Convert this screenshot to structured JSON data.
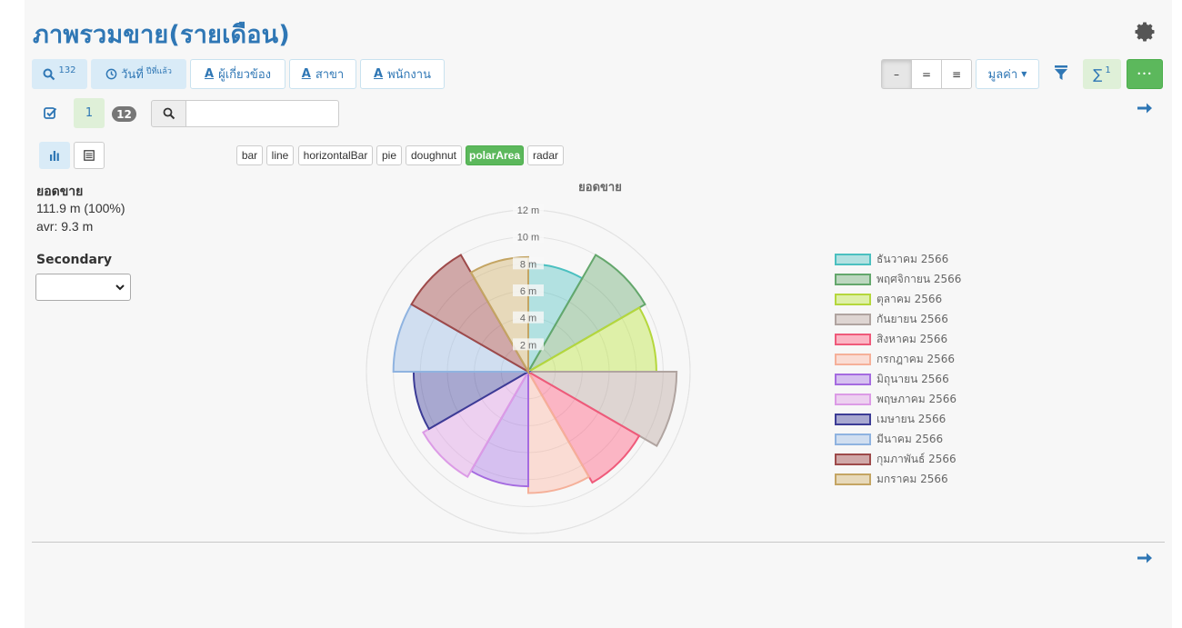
{
  "header": {
    "title": "ภาพรวมขาย(รายเดือน)"
  },
  "toolbar": {
    "search_count": "132",
    "date_label": "วันที่",
    "date_sup": "ปีที่แล้ว",
    "related_label": "ผู้เกี่ยวข้อง",
    "branch_label": "สาขา",
    "employee_label": "พนักงาน",
    "letter_icon": "A",
    "seg_labels": [
      "–",
      "=",
      "≡"
    ],
    "value_dropdown": "มูลค่า",
    "sigma_label": "∑",
    "sigma_sup": "1",
    "dots_label": "•••"
  },
  "row2": {
    "page": "1",
    "page_count": "12",
    "search_value": ""
  },
  "chart_types": [
    "bar",
    "line",
    "horizontalBar",
    "pie",
    "doughnut",
    "polarArea",
    "radar"
  ],
  "chart_types_active": "polarArea",
  "summary": {
    "label": "ยอดขาย",
    "total": "111.9 m (100%)",
    "avg": "avr: 9.3 m",
    "secondary_label": "Secondary"
  },
  "colors": {
    "accent": "#2f77b5",
    "success": "#5cb85c"
  },
  "chart_data": {
    "type": "polarArea",
    "title": "ยอดขาย",
    "rlim": [
      0,
      12
    ],
    "ticks": [
      "2 m",
      "4 m",
      "6 m",
      "8 m",
      "10 m",
      "12 m"
    ],
    "tick_values": [
      2,
      4,
      6,
      8,
      10,
      12
    ],
    "legend_position": "right",
    "series": [
      {
        "name": "ธันวาคม 2566",
        "value": 8.0,
        "color": "#4bc0c0",
        "fill": "rgba(75,192,192,0.4)"
      },
      {
        "name": "พฤศจิกายน 2566",
        "value": 10.0,
        "color": "#64a76c",
        "fill": "rgba(100,167,108,0.4)"
      },
      {
        "name": "ตุลาคม 2566",
        "value": 9.5,
        "color": "#b5d73c",
        "fill": "rgba(190,230,70,0.45)"
      },
      {
        "name": "กันยายน 2566",
        "value": 11.0,
        "color": "#b0a4a0",
        "fill": "rgba(190,170,165,0.45)"
      },
      {
        "name": "สิงหาคม 2566",
        "value": 9.5,
        "color": "#ef5a7a",
        "fill": "rgba(255,99,132,0.45)"
      },
      {
        "name": "กรกฎาคม 2566",
        "value": 9.0,
        "color": "#f5b099",
        "fill": "rgba(255,180,160,0.4)"
      },
      {
        "name": "มิถุนายน 2566",
        "value": 8.5,
        "color": "#a56be0",
        "fill": "rgba(165,110,230,0.4)"
      },
      {
        "name": "พฤษภาคม 2566",
        "value": 9.0,
        "color": "#dc9be6",
        "fill": "rgba(225,160,230,0.45)"
      },
      {
        "name": "เมษายน 2566",
        "value": 8.5,
        "color": "#3c3c96",
        "fill": "rgba(70,70,160,0.45)"
      },
      {
        "name": "มีนาคม 2566",
        "value": 10.0,
        "color": "#8fb3e0",
        "fill": "rgba(160,190,230,0.45)"
      },
      {
        "name": "กุมภาพันธ์ 2566",
        "value": 10.0,
        "color": "#9e4a4a",
        "fill": "rgba(160,70,70,0.45)"
      },
      {
        "name": "มกราคม 2566",
        "value": 8.5,
        "color": "#c4a563",
        "fill": "rgba(210,180,110,0.45)"
      }
    ]
  }
}
